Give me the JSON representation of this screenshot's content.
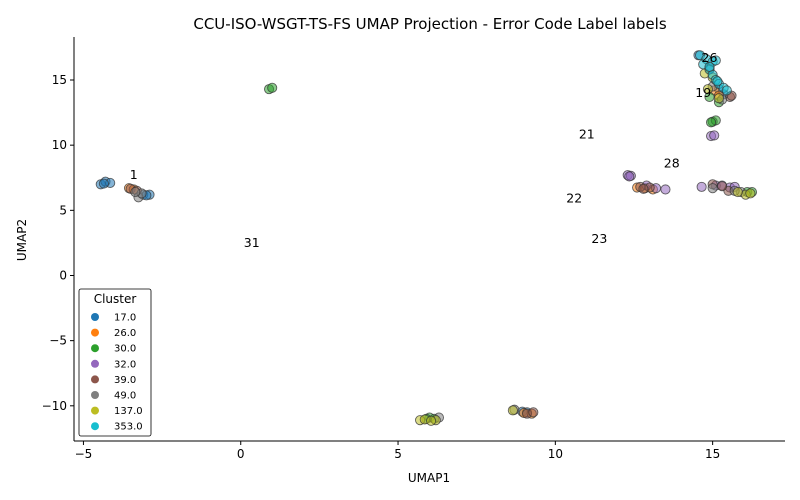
{
  "chart_data": {
    "type": "scatter",
    "title": "CCU-ISO-WSGT-TS-FS UMAP Projection - Error Code Label labels",
    "xlabel": "UMAP1",
    "ylabel": "UMAP2",
    "xlim": [
      -5.3,
      17.3
    ],
    "ylim": [
      -12.7,
      18.3
    ],
    "xticks": [
      -5,
      0,
      5,
      10,
      15
    ],
    "yticks": [
      -10,
      -5,
      0,
      5,
      10,
      15
    ],
    "grid": false,
    "legend": {
      "title": "Cluster",
      "placement": "lower-left",
      "entries": [
        "17.0",
        "26.0",
        "30.0",
        "32.0",
        "39.0",
        "49.0",
        "137.0",
        "353.0"
      ],
      "colors": [
        "#1f77b4",
        "#ff7f0e",
        "#2ca02c",
        "#9467bd",
        "#8c564b",
        "#7f7f7f",
        "#bcbd22",
        "#17becf"
      ]
    },
    "annotations": [
      {
        "text": "26",
        "x": 14.9,
        "y": 16.7
      },
      {
        "text": "19",
        "x": 14.7,
        "y": 14.0
      },
      {
        "text": "21",
        "x": 11.0,
        "y": 10.8
      },
      {
        "text": "28",
        "x": 13.7,
        "y": 8.6
      },
      {
        "text": "1",
        "x": -3.4,
        "y": 7.7
      },
      {
        "text": "22",
        "x": 10.6,
        "y": 5.9
      },
      {
        "text": "23",
        "x": 11.4,
        "y": 2.8
      },
      {
        "text": "31",
        "x": 0.35,
        "y": 2.5
      }
    ],
    "series": [
      {
        "name": "17.0",
        "color": "#1f77b4",
        "points": [
          [
            -4.45,
            7.0
          ],
          [
            -4.3,
            7.2
          ],
          [
            -4.15,
            7.1
          ],
          [
            -4.35,
            7.05
          ],
          [
            -3.1,
            6.2
          ],
          [
            -2.9,
            6.2
          ],
          [
            -3.0,
            6.15
          ],
          [
            8.95,
            -10.45
          ],
          [
            9.1,
            -10.5
          ],
          [
            14.55,
            16.9
          ],
          [
            15.2,
            14.3
          ],
          [
            15.35,
            13.9
          ]
        ]
      },
      {
        "name": "26.0",
        "color": "#ff7f0e",
        "points": [
          [
            -3.55,
            6.7
          ],
          [
            -3.4,
            6.6
          ],
          [
            12.6,
            6.75
          ],
          [
            12.85,
            6.7
          ],
          [
            13.1,
            6.6
          ],
          [
            9.0,
            -10.55
          ],
          [
            9.25,
            -10.6
          ],
          [
            15.05,
            14.2
          ],
          [
            15.2,
            13.8
          ]
        ]
      },
      {
        "name": "30.0",
        "color": "#2ca02c",
        "points": [
          [
            0.9,
            14.3
          ],
          [
            1.0,
            14.4
          ],
          [
            15.0,
            11.8
          ],
          [
            15.1,
            11.9
          ],
          [
            14.95,
            11.75
          ],
          [
            6.0,
            -10.9
          ],
          [
            6.15,
            -11.0
          ],
          [
            16.1,
            6.4
          ],
          [
            14.9,
            13.7
          ],
          [
            15.2,
            13.3
          ],
          [
            16.25,
            6.4
          ],
          [
            5.9,
            -11.0
          ]
        ]
      },
      {
        "name": "32.0",
        "color": "#9467bd",
        "points": [
          [
            12.3,
            7.7
          ],
          [
            12.4,
            7.65
          ],
          [
            12.9,
            6.9
          ],
          [
            13.2,
            6.7
          ],
          [
            13.5,
            6.6
          ],
          [
            14.95,
            10.7
          ],
          [
            15.05,
            10.75
          ],
          [
            14.65,
            6.8
          ],
          [
            15.1,
            6.9
          ],
          [
            15.3,
            6.9
          ],
          [
            15.55,
            6.75
          ],
          [
            15.7,
            6.8
          ],
          [
            12.35,
            7.6
          ]
        ]
      },
      {
        "name": "39.0",
        "color": "#8c564b",
        "points": [
          [
            -3.5,
            6.65
          ],
          [
            -3.3,
            6.5
          ],
          [
            12.7,
            6.8
          ],
          [
            13.0,
            6.75
          ],
          [
            15.0,
            7.0
          ],
          [
            15.5,
            6.5
          ],
          [
            15.55,
            13.7
          ],
          [
            15.6,
            13.8
          ],
          [
            9.1,
            -10.6
          ],
          [
            9.3,
            -10.5
          ],
          [
            12.8,
            6.65
          ],
          [
            15.3,
            6.85
          ]
        ]
      },
      {
        "name": "49.0",
        "color": "#7f7f7f",
        "points": [
          [
            -3.25,
            6.0
          ],
          [
            -3.15,
            6.3
          ],
          [
            14.9,
            15.9
          ],
          [
            15.0,
            14.5
          ],
          [
            15.3,
            13.5
          ],
          [
            6.3,
            -10.9
          ],
          [
            8.7,
            -10.3
          ],
          [
            15.9,
            6.4
          ],
          [
            15.0,
            6.7
          ],
          [
            15.7,
            6.5
          ],
          [
            -3.35,
            6.4
          ]
        ]
      },
      {
        "name": "137.0",
        "color": "#bcbd22",
        "points": [
          [
            14.75,
            15.5
          ],
          [
            15.0,
            15.2
          ],
          [
            14.85,
            14.3
          ],
          [
            15.2,
            13.6
          ],
          [
            5.7,
            -11.1
          ],
          [
            5.85,
            -11.05
          ],
          [
            6.2,
            -11.1
          ],
          [
            8.65,
            -10.35
          ],
          [
            16.05,
            6.2
          ],
          [
            15.8,
            6.4
          ],
          [
            16.2,
            6.3
          ],
          [
            6.05,
            -11.15
          ]
        ]
      },
      {
        "name": "353.0",
        "color": "#17becf",
        "points": [
          [
            14.6,
            16.9
          ],
          [
            14.8,
            16.6
          ],
          [
            15.0,
            16.4
          ],
          [
            14.7,
            16.2
          ],
          [
            15.1,
            16.5
          ],
          [
            14.9,
            15.8
          ],
          [
            15.0,
            15.4
          ],
          [
            15.1,
            15.0
          ],
          [
            15.2,
            14.7
          ],
          [
            15.35,
            14.4
          ],
          [
            15.45,
            14.2
          ],
          [
            14.9,
            16.0
          ],
          [
            15.15,
            14.9
          ]
        ]
      }
    ]
  }
}
